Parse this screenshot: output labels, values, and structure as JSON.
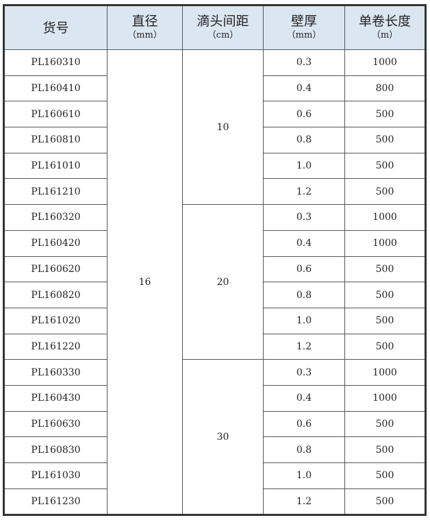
{
  "headers": [
    {
      "title": "货号",
      "unit": ""
    },
    {
      "title": "直径",
      "unit": "（mm）"
    },
    {
      "title": "滴头间距",
      "unit": "（cm）"
    },
    {
      "title": "壁厚",
      "unit": "（mm）"
    },
    {
      "title": "单卷长度",
      "unit": "（m）"
    }
  ],
  "diameter": "16",
  "groups": [
    {
      "spacing": "10",
      "rows": [
        {
          "code": "PL160310",
          "thickness": "0.3",
          "length": "1000"
        },
        {
          "code": "PL160410",
          "thickness": "0.4",
          "length": "800"
        },
        {
          "code": "PL160610",
          "thickness": "0.6",
          "length": "500"
        },
        {
          "code": "PL160810",
          "thickness": "0.8",
          "length": "500"
        },
        {
          "code": "PL161010",
          "thickness": "1.0",
          "length": "500"
        },
        {
          "code": "PL161210",
          "thickness": "1.2",
          "length": "500"
        }
      ]
    },
    {
      "spacing": "20",
      "rows": [
        {
          "code": "PL160320",
          "thickness": "0.3",
          "length": "1000"
        },
        {
          "code": "PL160420",
          "thickness": "0.4",
          "length": "1000"
        },
        {
          "code": "PL160620",
          "thickness": "0.6",
          "length": "500"
        },
        {
          "code": "PL160820",
          "thickness": "0.8",
          "length": "500"
        },
        {
          "code": "PL161020",
          "thickness": "1.0",
          "length": "500"
        },
        {
          "code": "PL161220",
          "thickness": "1.2",
          "length": "500"
        }
      ]
    },
    {
      "spacing": "30",
      "rows": [
        {
          "code": "PL160330",
          "thickness": "0.3",
          "length": "1000"
        },
        {
          "code": "PL160430",
          "thickness": "0.4",
          "length": "1000"
        },
        {
          "code": "PL160630",
          "thickness": "0.6",
          "length": "500"
        },
        {
          "code": "PL160830",
          "thickness": "0.8",
          "length": "500"
        },
        {
          "code": "PL161030",
          "thickness": "1.0",
          "length": "500"
        },
        {
          "code": "PL161230",
          "thickness": "1.2",
          "length": "500"
        }
      ]
    }
  ]
}
